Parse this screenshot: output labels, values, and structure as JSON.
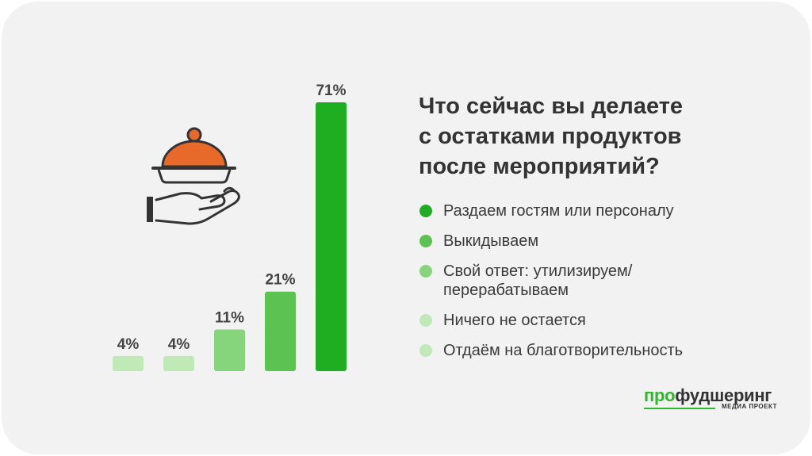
{
  "chart_data": {
    "type": "bar",
    "title": "Что сейчас вы делаете с остатками продуктов после мероприятий?",
    "title_lines": [
      "Что сейчас вы делаете",
      "с остатками продуктов",
      "после мероприятий?"
    ],
    "categories": [
      "Отдаём на благотворительность",
      "Ничего не остается",
      "Свой ответ: утилизируем/перерабатываем",
      "Выкидываем",
      "Раздаем гостям или персоналу"
    ],
    "values": [
      4,
      4,
      11,
      21,
      71
    ],
    "value_labels": [
      "4%",
      "4%",
      "11%",
      "21%",
      "71%"
    ],
    "colors": [
      "#bfeab7",
      "#bfeab7",
      "#86d47c",
      "#5cc252",
      "#1fae22"
    ],
    "ylim": [
      0,
      71
    ],
    "grid": false,
    "legend_placement": "right"
  },
  "legend": [
    {
      "lines": [
        "Раздаем гостям или персоналу"
      ],
      "color": "#1fae22"
    },
    {
      "lines": [
        "Выкидываем"
      ],
      "color": "#5cc252"
    },
    {
      "lines": [
        "Свой ответ: утилизируем/",
        "перерабатываем"
      ],
      "color": "#86d47c"
    },
    {
      "lines": [
        "Ничего не остается"
      ],
      "color": "#bfeab7"
    },
    {
      "lines": [
        "Отдаём на благотворительность"
      ],
      "color": "#bfeab7"
    }
  ],
  "icon": "food-cloche-on-hand-icon",
  "logo": {
    "pro": "про",
    "rest": "фудшеринг",
    "sub": "МЕДИА ПРОЕКТ",
    "accent": "#2db82d"
  }
}
